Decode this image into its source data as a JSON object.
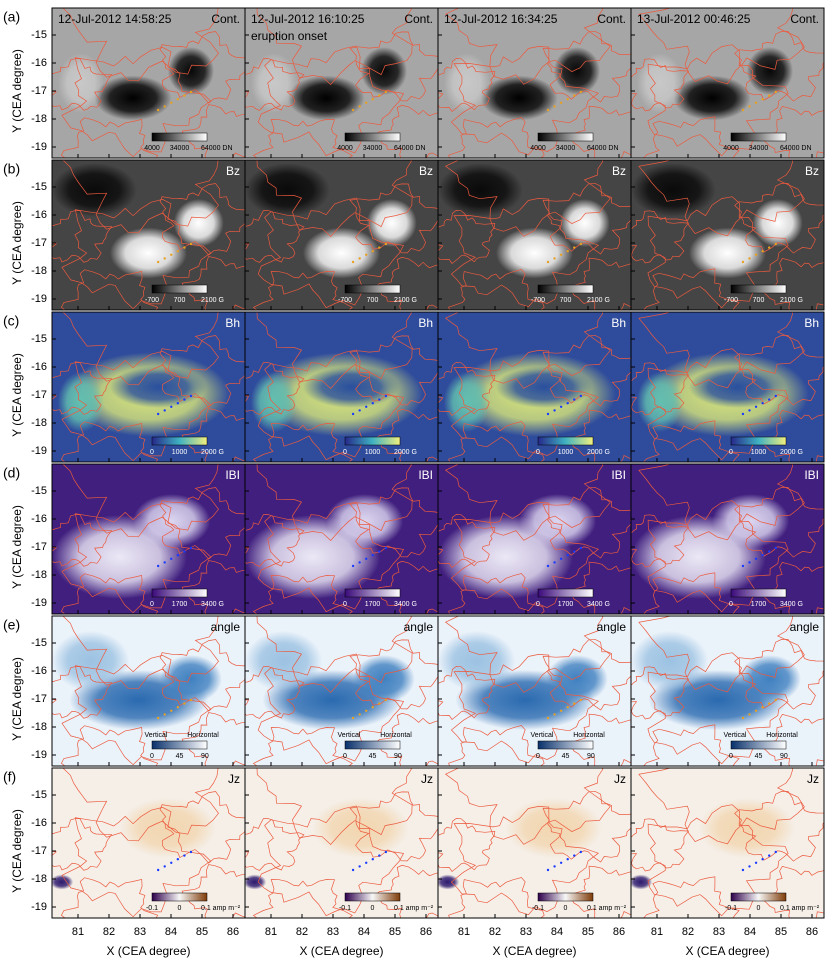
{
  "timestamps": [
    "12-Jul-2012 14:58:25",
    "12-Jul-2012 16:10:25",
    "12-Jul-2012 16:34:25",
    "13-Jul-2012 00:46:25"
  ],
  "annotation": "eruption onset",
  "y_axis_label": "Y (CEA degree)",
  "x_axis_label": "X (CEA degree)",
  "yticks": [
    -15,
    -16,
    -17,
    -18,
    -19
  ],
  "xticks": [
    81,
    82,
    83,
    84,
    85,
    86
  ],
  "rows": [
    {
      "label": "(a)",
      "quantity": "Cont.",
      "colorbar_ticks": [
        "4000",
        "34000",
        "64000 DN"
      ]
    },
    {
      "label": "(b)",
      "quantity": "Bz",
      "colorbar_ticks": [
        "-700",
        "700",
        "2100 G"
      ]
    },
    {
      "label": "(c)",
      "quantity": "Bh",
      "colorbar_ticks": [
        "0",
        "1000",
        "2000 G"
      ]
    },
    {
      "label": "(d)",
      "quantity": "IBI",
      "colorbar_ticks": [
        "0",
        "1700",
        "3400 G"
      ]
    },
    {
      "label": "(e)",
      "quantity": "angle",
      "colorbar_ticks": [
        "0",
        "45",
        "90"
      ],
      "colorbar_ends": [
        "Vertical",
        "Horizontal"
      ]
    },
    {
      "label": "(f)",
      "quantity": "Jz",
      "colorbar_ticks": [
        "-0.1",
        "0",
        "0.1 amp m⁻²"
      ]
    }
  ]
}
